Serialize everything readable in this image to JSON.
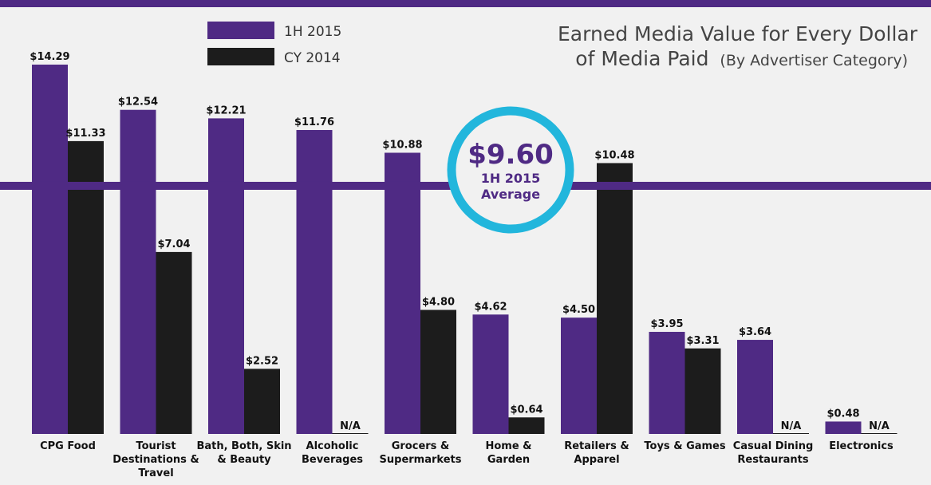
{
  "chart_data": {
    "type": "bar",
    "title": "Earned Media Value for Every Dollar of Media Paid",
    "title_line1": "Earned Media Value for Every Dollar",
    "title_line2": "of Media Paid",
    "title_suffix": "(By Advertiser Category)",
    "categories": [
      [
        "CPG Food"
      ],
      [
        "Tourist",
        "Destinations &",
        "Travel"
      ],
      [
        "Bath, Both, Skin",
        "& Beauty"
      ],
      [
        "Alcoholic",
        "Beverages"
      ],
      [
        "Grocers &",
        "Supermarkets"
      ],
      [
        "Home &",
        "Garden"
      ],
      [
        "Retailers &",
        "Apparel"
      ],
      [
        "Toys & Games"
      ],
      [
        "Casual Dining",
        "Restaurants"
      ],
      [
        "Electronics"
      ]
    ],
    "series": [
      {
        "name": "1H 2015",
        "color": "#4f2a84",
        "values": [
          14.29,
          12.54,
          12.21,
          11.76,
          10.88,
          4.62,
          4.5,
          3.95,
          3.64,
          0.48
        ],
        "labels": [
          "$14.29",
          "$12.54",
          "$12.21",
          "$11.76",
          "$10.88",
          "$4.62",
          "$4.50",
          "$3.95",
          "$3.64",
          "$0.48"
        ]
      },
      {
        "name": "CY 2014",
        "color": "#1c1c1c",
        "values": [
          11.33,
          7.04,
          2.52,
          null,
          4.8,
          0.64,
          10.48,
          3.31,
          null,
          null
        ],
        "labels": [
          "$11.33",
          "$7.04",
          "$2.52",
          "N/A",
          "$4.80",
          "$0.64",
          "$10.48",
          "$3.31",
          "N/A",
          "N/A"
        ]
      }
    ],
    "average": {
      "value": 9.6,
      "value_label": "$9.60",
      "label_line1": "1H 2015",
      "label_line2": "Average"
    },
    "ylim": [
      0,
      15
    ],
    "xlabel": "",
    "ylabel": "",
    "grid": false,
    "legend": "top-left",
    "colors": {
      "accent_line": "#4f2a84",
      "badge_ring": "#22b6dc",
      "background": "#f1f1f1"
    }
  }
}
